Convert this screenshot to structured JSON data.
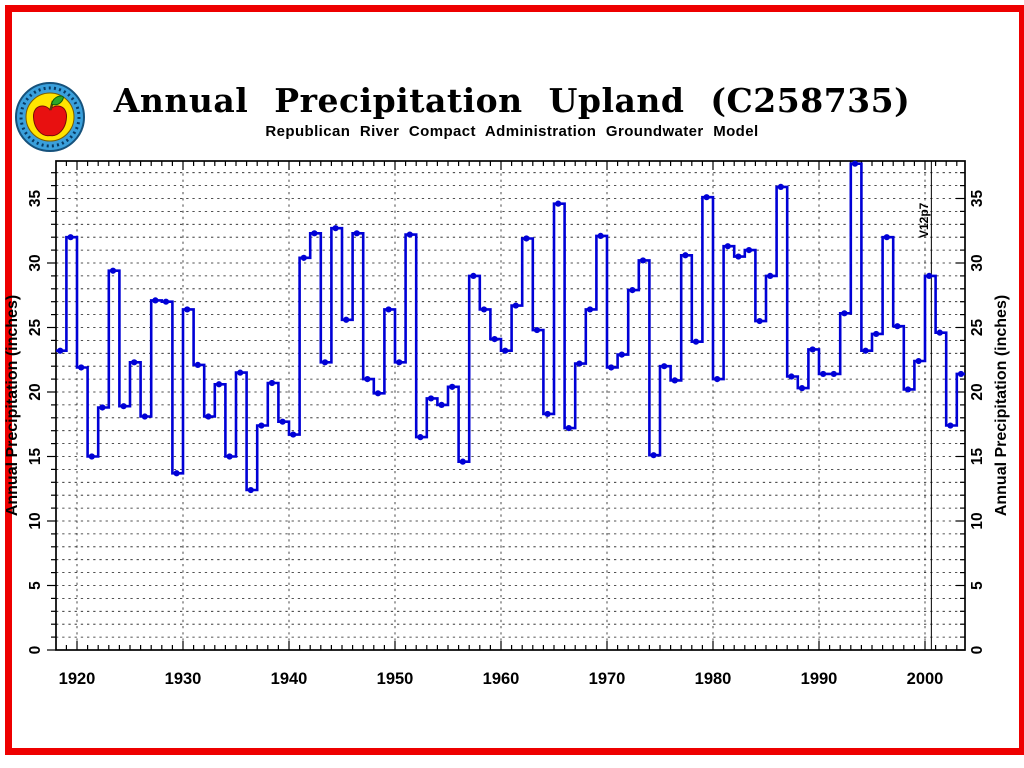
{
  "page": {
    "border_color": "#ee0000",
    "background": "#ffffff"
  },
  "logo": {
    "ring_color": "#3aa0dc",
    "ring_edge_color": "#16527c",
    "inner_color": "#ffe400",
    "apple_color": "#e81010",
    "leaf_color": "#2aa82a",
    "stem_color": "#5a3a10"
  },
  "chart_data": {
    "type": "line",
    "style": "step",
    "title": "Annual Precipitation Upland (C258735)",
    "subtitle": "Republican River Compact Administration Groundwater Model",
    "ylabel_left": "Annual Precipitation (inches)",
    "ylabel_right": "Annual Precipitation (inches)",
    "xlabel": "",
    "series_color": "#0000d6",
    "grid": true,
    "x_range": [
      1918,
      2003.8
    ],
    "y_range": [
      0,
      37.9
    ],
    "x_major_ticks": [
      1920,
      1930,
      1940,
      1950,
      1960,
      1970,
      1980,
      1990,
      2000
    ],
    "y_major_ticks": [
      0,
      5,
      10,
      15,
      20,
      25,
      30,
      35
    ],
    "x_minor_step": 1,
    "y_minor_step": 1,
    "annotation": {
      "label": "V12p7",
      "year": 2000.6
    },
    "start_year": 1918,
    "values": [
      23.2,
      32,
      21.9,
      15,
      18.8,
      29.4,
      18.9,
      22.3,
      18.1,
      27.1,
      27,
      13.7,
      26.4,
      22.1,
      18.1,
      20.6,
      15,
      21.5,
      12.4,
      17.4,
      20.7,
      17.7,
      16.7,
      30.4,
      32.3,
      22.3,
      32.7,
      25.6,
      32.3,
      21,
      19.9,
      26.4,
      22.3,
      32.2,
      16.5,
      19.5,
      19,
      20.4,
      14.6,
      29,
      26.4,
      24.1,
      23.2,
      26.7,
      31.9,
      24.8,
      18.3,
      34.6,
      17.2,
      22.2,
      26.4,
      32.1,
      21.9,
      22.9,
      27.9,
      30.2,
      15.1,
      22,
      20.9,
      30.6,
      23.9,
      35.1,
      21,
      31.3,
      30.5,
      31,
      25.5,
      29,
      35.9,
      21.2,
      20.3,
      23.3,
      21.4,
      21.4,
      26.1,
      37.7,
      23.2,
      24.5,
      32,
      25.1,
      20.2,
      22.4,
      29,
      24.6,
      17.4,
      21.4
    ]
  }
}
